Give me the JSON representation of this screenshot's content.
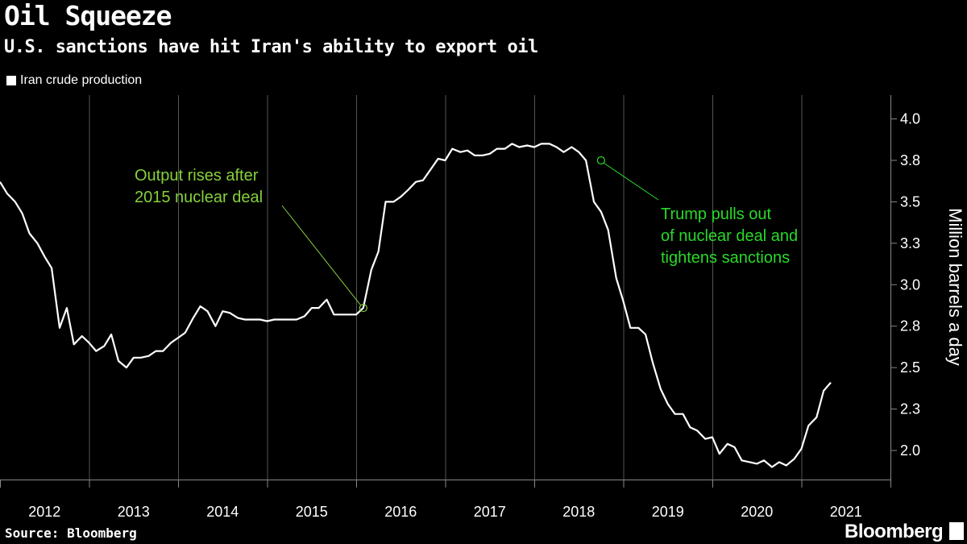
{
  "header": {
    "title": "Oil Squeeze",
    "subtitle": "U.S. sanctions have hit Iran's ability to export oil"
  },
  "legend": {
    "label": "Iran crude production",
    "swatch_color": "#ffffff"
  },
  "footer": {
    "source": "Source: Bloomberg",
    "brand": "Bloomberg"
  },
  "colors": {
    "background": "#000000",
    "line": "#ffffff",
    "grid": "#555555",
    "annotation_1": "#86d13c",
    "annotation_2": "#28d928"
  },
  "chart_data": {
    "type": "line",
    "title": "Oil Squeeze",
    "subtitle": "U.S. sanctions have hit Iran's ability to export oil",
    "ylabel": "Million barrels a day",
    "y_ticks": [
      "4.0",
      "3.8",
      "3.5",
      "3.3",
      "3.0",
      "2.8",
      "2.5",
      "2.3",
      "2.0"
    ],
    "y_tick_values": [
      4.0,
      3.75,
      3.5,
      3.25,
      3.0,
      2.75,
      2.5,
      2.25,
      2.0
    ],
    "ylim": [
      1.82,
      4.1
    ],
    "x_categories": [
      "2012",
      "2013",
      "2014",
      "2015",
      "2016",
      "2017",
      "2018",
      "2019",
      "2020",
      "2021"
    ],
    "xlim": [
      2012.0,
      2022.0
    ],
    "grid": true,
    "legend_position": "top-left",
    "series": [
      {
        "name": "Iran crude production",
        "x": [
          2012.0,
          2012.08,
          2012.17,
          2012.25,
          2012.33,
          2012.42,
          2012.5,
          2012.58,
          2012.67,
          2012.75,
          2012.83,
          2012.92,
          2013.0,
          2013.08,
          2013.17,
          2013.25,
          2013.33,
          2013.42,
          2013.5,
          2013.58,
          2013.67,
          2013.75,
          2013.83,
          2013.92,
          2014.0,
          2014.08,
          2014.17,
          2014.25,
          2014.33,
          2014.42,
          2014.5,
          2014.58,
          2014.67,
          2014.75,
          2014.83,
          2014.92,
          2015.0,
          2015.08,
          2015.17,
          2015.25,
          2015.33,
          2015.42,
          2015.5,
          2015.58,
          2015.67,
          2015.75,
          2015.83,
          2015.92,
          2016.0,
          2016.08,
          2016.17,
          2016.25,
          2016.33,
          2016.42,
          2016.5,
          2016.58,
          2016.67,
          2016.75,
          2016.83,
          2016.92,
          2017.0,
          2017.08,
          2017.17,
          2017.25,
          2017.33,
          2017.42,
          2017.5,
          2017.58,
          2017.67,
          2017.75,
          2017.83,
          2017.92,
          2018.0,
          2018.08,
          2018.17,
          2018.25,
          2018.33,
          2018.42,
          2018.5,
          2018.58,
          2018.67,
          2018.75,
          2018.83,
          2018.92,
          2019.0,
          2019.08,
          2019.17,
          2019.25,
          2019.33,
          2019.42,
          2019.5,
          2019.58,
          2019.67,
          2019.75,
          2019.83,
          2019.92,
          2020.0,
          2020.08,
          2020.17,
          2020.25,
          2020.33,
          2020.42,
          2020.5,
          2020.58,
          2020.67,
          2020.75,
          2020.83,
          2020.92,
          2021.0,
          2021.08,
          2021.17,
          2021.25,
          2021.33
        ],
        "y": [
          3.62,
          3.55,
          3.5,
          3.43,
          3.31,
          3.25,
          3.17,
          3.1,
          2.74,
          2.86,
          2.64,
          2.69,
          2.65,
          2.6,
          2.63,
          2.7,
          2.54,
          2.5,
          2.56,
          2.56,
          2.57,
          2.6,
          2.6,
          2.65,
          2.68,
          2.71,
          2.8,
          2.87,
          2.84,
          2.75,
          2.84,
          2.83,
          2.8,
          2.79,
          2.79,
          2.79,
          2.78,
          2.79,
          2.79,
          2.79,
          2.79,
          2.81,
          2.86,
          2.86,
          2.91,
          2.82,
          2.82,
          2.82,
          2.82,
          2.86,
          3.09,
          3.2,
          3.5,
          3.5,
          3.53,
          3.57,
          3.62,
          3.63,
          3.69,
          3.76,
          3.75,
          3.82,
          3.8,
          3.81,
          3.78,
          3.78,
          3.79,
          3.82,
          3.82,
          3.85,
          3.83,
          3.84,
          3.83,
          3.85,
          3.85,
          3.83,
          3.8,
          3.83,
          3.8,
          3.75,
          3.5,
          3.44,
          3.33,
          3.04,
          2.9,
          2.74,
          2.74,
          2.7,
          2.53,
          2.37,
          2.28,
          2.22,
          2.22,
          2.14,
          2.12,
          2.07,
          2.08,
          1.98,
          2.04,
          2.02,
          1.94,
          1.93,
          1.92,
          1.94,
          1.9,
          1.93,
          1.91,
          1.95,
          2.01,
          2.15,
          2.2,
          2.36,
          2.41
        ]
      }
    ],
    "annotations": [
      {
        "lines": [
          "Output rises after",
          "2015 nuclear deal"
        ],
        "x": 2016.08,
        "y": 2.86
      },
      {
        "lines": [
          "Trump pulls out",
          "of nuclear deal and",
          "tightens sanctions"
        ],
        "x": 2018.75,
        "y": 3.75
      }
    ]
  }
}
